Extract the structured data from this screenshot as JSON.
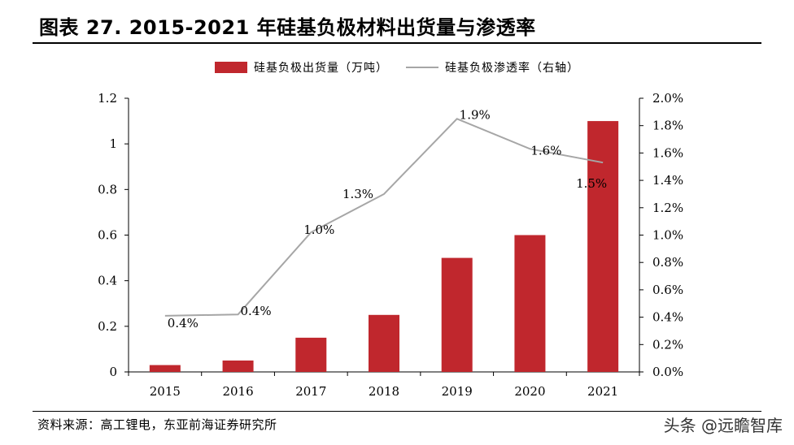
{
  "header": {
    "title": "图表 27. 2015-2021 年硅基负极材料出货量与渗透率"
  },
  "footer": {
    "source": "资料来源：高工锂电，东亚前海证券研究所",
    "watermark": "头条 @远瞻智库"
  },
  "colors": {
    "bar": "#c0272d",
    "line": "#a6a6a6"
  },
  "chart_data": {
    "type": "bar",
    "categories": [
      "2015",
      "2016",
      "2017",
      "2018",
      "2019",
      "2020",
      "2021"
    ],
    "series": [
      {
        "name": "硅基负极出货量（万吨）",
        "type": "bar",
        "axis": "left",
        "values": [
          0.03,
          0.05,
          0.15,
          0.25,
          0.5,
          0.6,
          1.1
        ]
      },
      {
        "name": "硅基负极渗透率（右轴）",
        "type": "line",
        "axis": "right",
        "values": [
          0.41,
          0.42,
          1.02,
          1.3,
          1.85,
          1.63,
          1.53
        ],
        "labels": [
          "0.4%",
          "0.4%",
          "1.0%",
          "1.3%",
          "1.9%",
          "1.6%",
          "1.5%"
        ]
      }
    ],
    "ylim": [
      0,
      1.2
    ],
    "yticks": [
      "0",
      "0.2",
      "0.4",
      "0.6",
      "0.8",
      "1",
      "1.2"
    ],
    "y2lim": [
      0,
      2.0
    ],
    "y2ticks": [
      "0.0%",
      "0.2%",
      "0.4%",
      "0.6%",
      "0.8%",
      "1.0%",
      "1.2%",
      "1.4%",
      "1.6%",
      "1.8%",
      "2.0%"
    ],
    "legend_position": "top-center",
    "grid": false
  }
}
